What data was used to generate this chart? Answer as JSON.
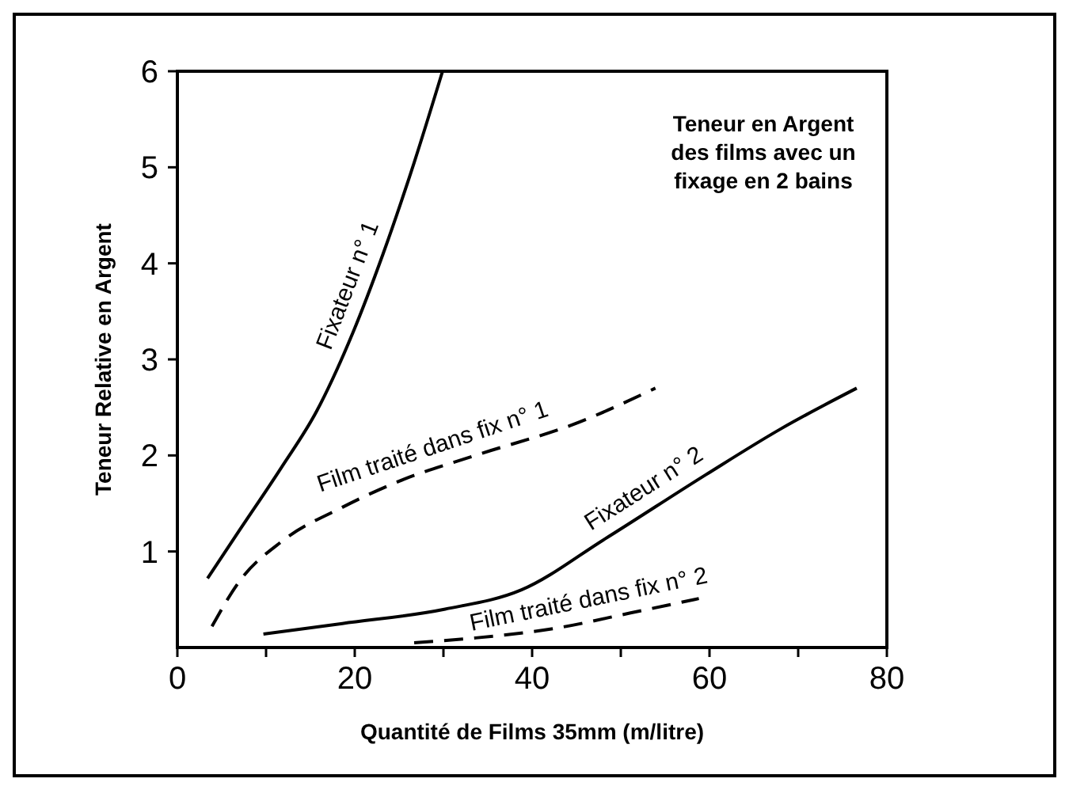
{
  "chart_data": {
    "type": "line",
    "title": "Teneur en Argent des films avec un fixage en 2 bains",
    "xlabel": "Quantité de Films  35mm  (m/litre)",
    "ylabel": "Teneur Relative en Argent",
    "xlim": [
      0,
      80
    ],
    "ylim": [
      0,
      6
    ],
    "xticks": [
      0,
      {
        "value": 10,
        "label": null
      },
      20,
      {
        "value": 30,
        "label": null
      },
      40,
      {
        "value": 50,
        "label": null
      },
      60,
      {
        "value": 70,
        "label": null
      },
      80
    ],
    "yticks": [
      1,
      2,
      3,
      4,
      5,
      6
    ],
    "grid": false,
    "marker": "none",
    "series": [
      {
        "name": "Fixateur n° 1",
        "color": "#000000",
        "line_style": "solid",
        "x": [
          3.4,
          7,
          11.7,
          15.7,
          19.8,
          23.2,
          26.7,
          29.9
        ],
        "values": [
          0.72,
          1.22,
          1.87,
          2.46,
          3.28,
          4.1,
          5.05,
          6
        ]
      },
      {
        "name": "Film traité dans fix n° 1",
        "color": "#000000",
        "line_style": "dashed",
        "x": [
          3.9,
          7,
          11.7,
          18.6,
          25.5,
          33.6,
          45.4,
          53.9
        ],
        "values": [
          0.22,
          0.69,
          1.1,
          1.46,
          1.75,
          2.0,
          2.35,
          2.7
        ]
      },
      {
        "name": "Fixateur n° 2",
        "color": "#000000",
        "line_style": "solid",
        "x": [
          9.7,
          18.6,
          30.2,
          38.8,
          48.2,
          59.6,
          68.1,
          76.6
        ],
        "values": [
          0.14,
          0.25,
          0.4,
          0.6,
          1.13,
          1.8,
          2.28,
          2.7
        ]
      },
      {
        "name": "Film traité dans fix n° 2",
        "color": "#000000",
        "line_style": "dashed",
        "x": [
          26.7,
          33.6,
          42.6,
          51.1,
          58.8
        ],
        "values": [
          0.05,
          0.1,
          0.2,
          0.36,
          0.51
        ]
      }
    ]
  }
}
